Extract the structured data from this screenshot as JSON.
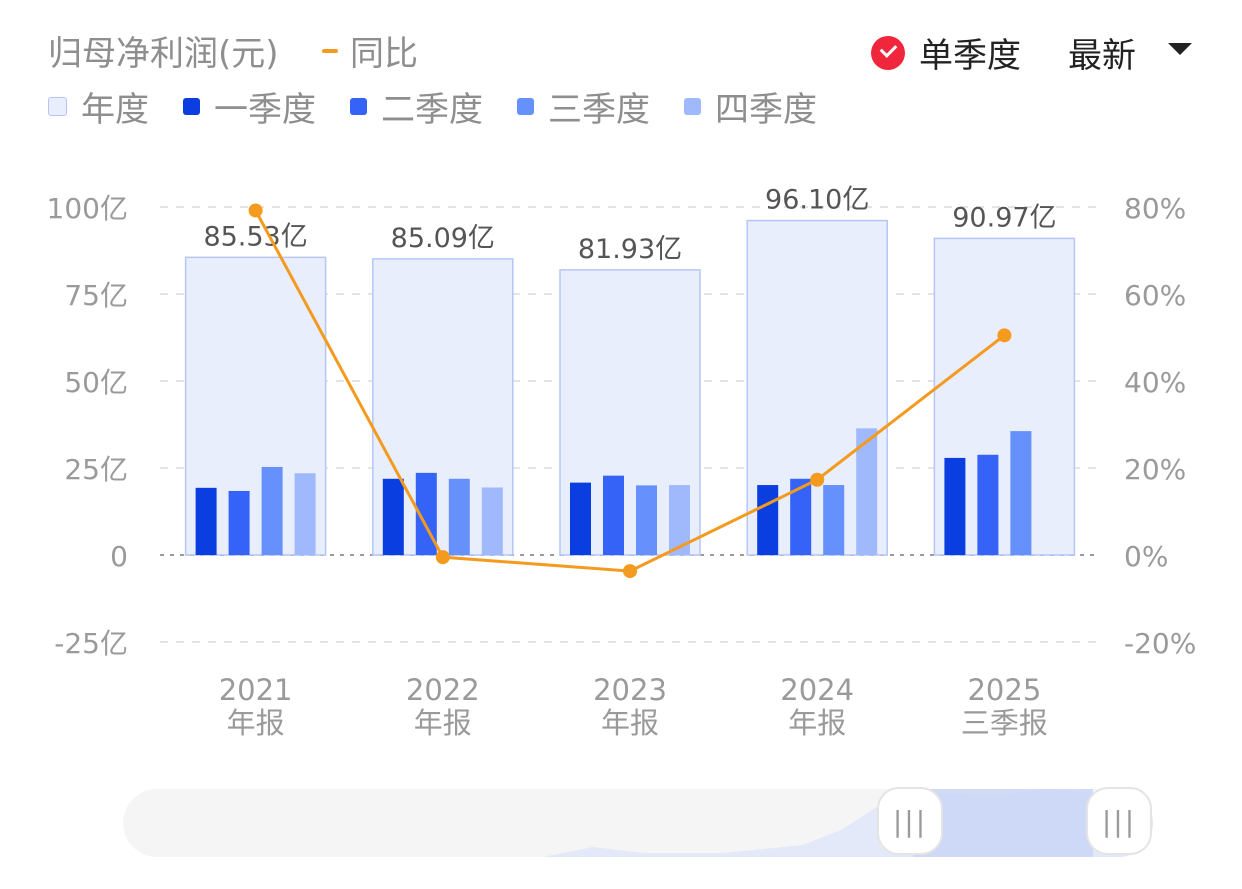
{
  "header": {
    "title": "归母净利润(元)",
    "yoy_label": "同比",
    "toggle_label": "单季度",
    "latest_label": "最新"
  },
  "legend": [
    {
      "label": "年度",
      "color": "#e8eefc"
    },
    {
      "label": "一季度",
      "color": "#0b3ee0"
    },
    {
      "label": "二季度",
      "color": "#3563f8"
    },
    {
      "label": "三季度",
      "color": "#6690fb"
    },
    {
      "label": "四季度",
      "color": "#a0b9fc"
    }
  ],
  "chart_data": {
    "type": "bar",
    "categories": [
      {
        "line1": "2021",
        "line2": "年报"
      },
      {
        "line1": "2022",
        "line2": "年报"
      },
      {
        "line1": "2023",
        "line2": "年报"
      },
      {
        "line1": "2024",
        "line2": "年报"
      },
      {
        "line1": "2025",
        "line2": "三季报"
      }
    ],
    "annual": [
      85.53,
      85.09,
      81.93,
      96.1,
      90.97
    ],
    "annual_labels": [
      "85.53亿",
      "85.09亿",
      "81.93亿",
      "96.10亿",
      "90.97亿"
    ],
    "quarters": [
      [
        19.3,
        18.4,
        25.3,
        23.5
      ],
      [
        21.9,
        23.6,
        21.9,
        19.4
      ],
      [
        20.8,
        22.8,
        20.0,
        20.1
      ],
      [
        20.1,
        21.9,
        20.1,
        36.4
      ],
      [
        27.9,
        28.8,
        35.6,
        null
      ]
    ],
    "yoy": [
      79.2,
      -0.5,
      -3.7,
      17.3,
      50.5
    ],
    "y_left": {
      "min": -25,
      "max": 100,
      "ticks": [
        "100亿",
        "75亿",
        "50亿",
        "25亿",
        "0",
        "-25亿"
      ]
    },
    "y_right": {
      "min": -20,
      "max": 80,
      "ticks": [
        "80%",
        "60%",
        "40%",
        "20%",
        "0%",
        "-20%"
      ]
    },
    "colors": {
      "annual_fill": "#e8eefc",
      "annual_stroke": "#b5c6f5",
      "yoy": "#f39a1f"
    }
  }
}
